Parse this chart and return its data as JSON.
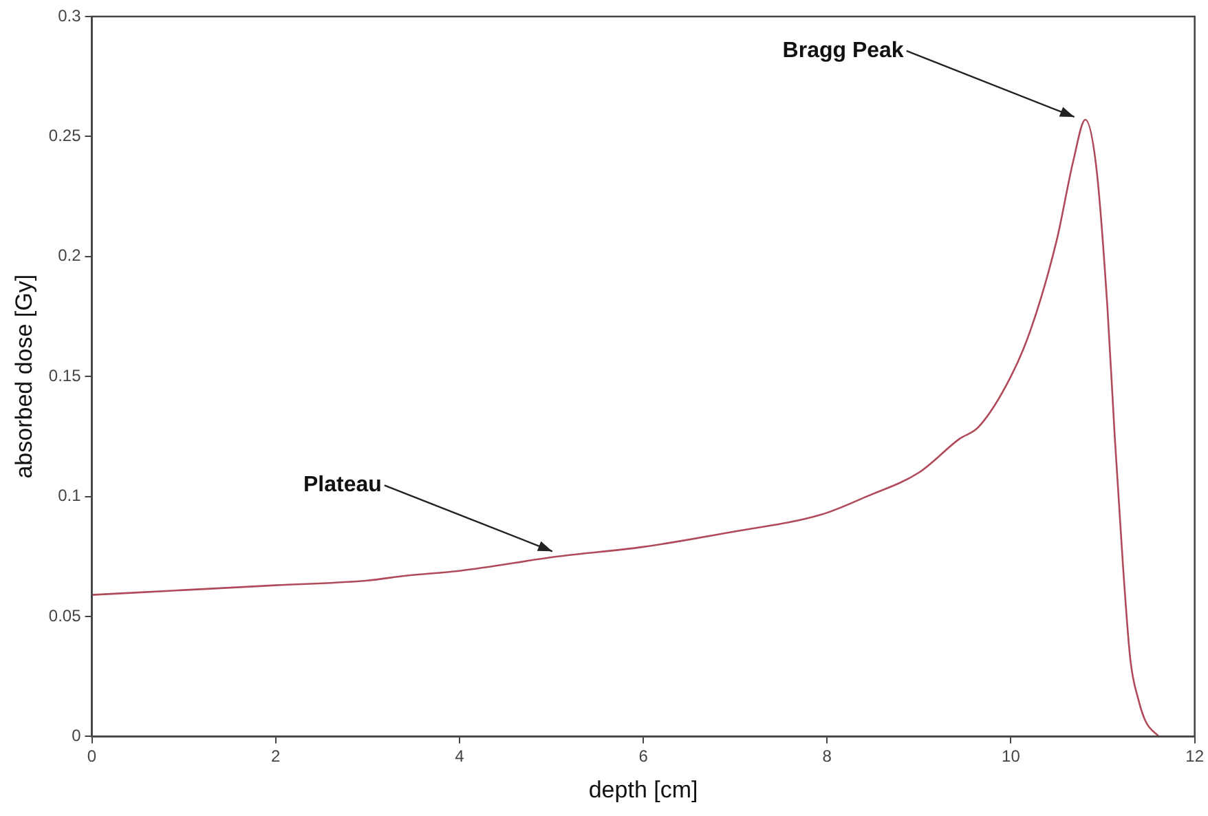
{
  "chart_data": {
    "type": "line",
    "xlabel": "depth [cm]",
    "ylabel": "absorbed dose [Gy]",
    "x": [
      0,
      1,
      2,
      3,
      3.42,
      4,
      5.07,
      6,
      6.93,
      7.94,
      8.43,
      9.0,
      9.44,
      9.65,
      10.0,
      10.22,
      10.5,
      10.68,
      10.81,
      10.93,
      11.05,
      11.13,
      11.22,
      11.3,
      11.39,
      11.47,
      11.61
    ],
    "series": [
      {
        "color": "#b04a5a",
        "values": [
          0.059,
          0.061,
          0.063,
          0.065,
          0.067,
          0.069,
          0.075,
          0.079,
          0.085,
          0.0925,
          0.1,
          0.11,
          0.124,
          0.129,
          0.15,
          0.17,
          0.207,
          0.24,
          0.257,
          0.237,
          0.179,
          0.125,
          0.071,
          0.032,
          0.015,
          0.006,
          0
        ]
      }
    ],
    "xlim": [
      0,
      12
    ],
    "xticks": [
      0,
      2,
      4,
      6,
      8,
      10,
      12
    ],
    "ylim": [
      0,
      0.3
    ],
    "yticks": [
      0,
      0.05,
      0.1,
      0.15,
      0.2,
      0.25,
      0.3
    ],
    "grid": false,
    "legend": false,
    "marker": "none",
    "line_style": "solid",
    "annotations": [
      {
        "text": "Bragg Peak",
        "x": 10.78,
        "y": 0.257
      },
      {
        "text": "Plateau",
        "x": 5.1,
        "y": 0.076
      }
    ]
  }
}
